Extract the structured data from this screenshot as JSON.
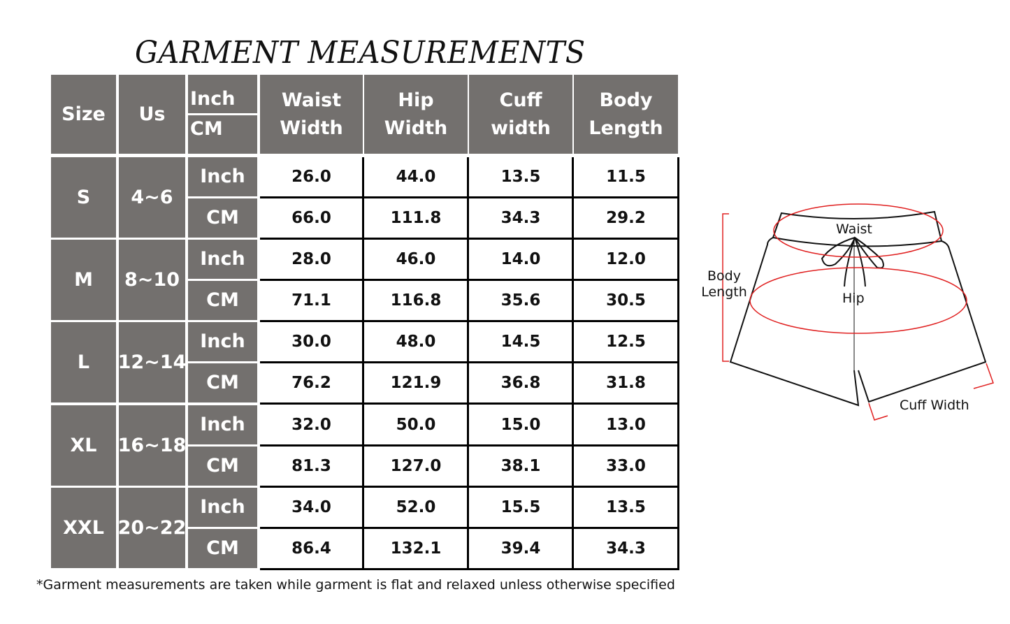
{
  "title": "GARMENT MEASUREMENTS",
  "table": {
    "headers": {
      "size": "Size",
      "us": "Us",
      "unit_top": "Inch",
      "unit_bottom": "CM",
      "columns": [
        "Waist Width",
        "Hip Width",
        "Cuff width",
        "Body Length"
      ]
    },
    "rows": [
      {
        "size": "S",
        "us": "4~6",
        "inch": [
          "26.0",
          "44.0",
          "13.5",
          "11.5"
        ],
        "cm": [
          "66.0",
          "111.8",
          "34.3",
          "29.2"
        ]
      },
      {
        "size": "M",
        "us": "8~10",
        "inch": [
          "28.0",
          "46.0",
          "14.0",
          "12.0"
        ],
        "cm": [
          "71.1",
          "116.8",
          "35.6",
          "30.5"
        ]
      },
      {
        "size": "L",
        "us": "12~14",
        "inch": [
          "30.0",
          "48.0",
          "14.5",
          "12.5"
        ],
        "cm": [
          "76.2",
          "121.9",
          "36.8",
          "31.8"
        ]
      },
      {
        "size": "XL",
        "us": "16~18",
        "inch": [
          "32.0",
          "50.0",
          "15.0",
          "13.0"
        ],
        "cm": [
          "81.3",
          "127.0",
          "38.1",
          "33.0"
        ]
      },
      {
        "size": "XXL",
        "us": "20~22",
        "inch": [
          "34.0",
          "52.0",
          "15.5",
          "13.5"
        ],
        "cm": [
          "86.4",
          "132.1",
          "39.4",
          "34.3"
        ]
      }
    ],
    "unit_labels": {
      "inch": "Inch",
      "cm": "CM"
    }
  },
  "footnote": "*Garment measurements are taken while garment is flat and relaxed unless otherwise specified",
  "diagram": {
    "labels": {
      "waist": "Waist",
      "hip": "Hip",
      "body_length": "Body Length",
      "cuff_width": "Cuff Width"
    },
    "colors": {
      "measure_line": "#e02020",
      "header_fill": "#73706e"
    }
  }
}
